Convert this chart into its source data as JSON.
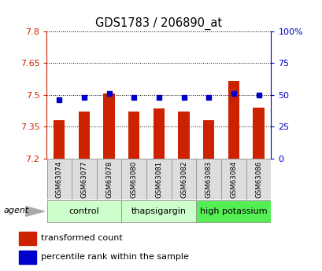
{
  "title": "GDS1783 / 206890_at",
  "samples": [
    "GSM63074",
    "GSM63077",
    "GSM63078",
    "GSM63080",
    "GSM63081",
    "GSM63082",
    "GSM63083",
    "GSM63084",
    "GSM63086"
  ],
  "red_values": [
    7.38,
    7.42,
    7.505,
    7.42,
    7.435,
    7.42,
    7.38,
    7.565,
    7.44
  ],
  "blue_values": [
    46,
    48,
    51,
    48,
    48,
    48,
    48,
    51,
    50
  ],
  "ylim_left": [
    7.2,
    7.8
  ],
  "ylim_right": [
    0,
    100
  ],
  "yticks_left": [
    7.2,
    7.35,
    7.5,
    7.65,
    7.8
  ],
  "yticks_right": [
    0,
    25,
    50,
    75,
    100
  ],
  "ytick_labels_left": [
    "7.2",
    "7.35",
    "7.5",
    "7.65",
    "7.8"
  ],
  "ytick_labels_right": [
    "0",
    "25",
    "50",
    "75",
    "100%"
  ],
  "group_edges": [
    0,
    3,
    6,
    9
  ],
  "group_labels": [
    "control",
    "thapsigargin",
    "high potassium"
  ],
  "group_colors": [
    "#ccffcc",
    "#ccffcc",
    "#55ee55"
  ],
  "bar_color": "#cc2200",
  "dot_color": "#0000cc",
  "bar_width": 0.45,
  "grid_color": "#000000",
  "bg_color": "#ffffff",
  "plot_bg": "#ffffff",
  "legend_red": "transformed count",
  "legend_blue": "percentile rank within the sample",
  "agent_label": "agent",
  "base_value": 7.2
}
